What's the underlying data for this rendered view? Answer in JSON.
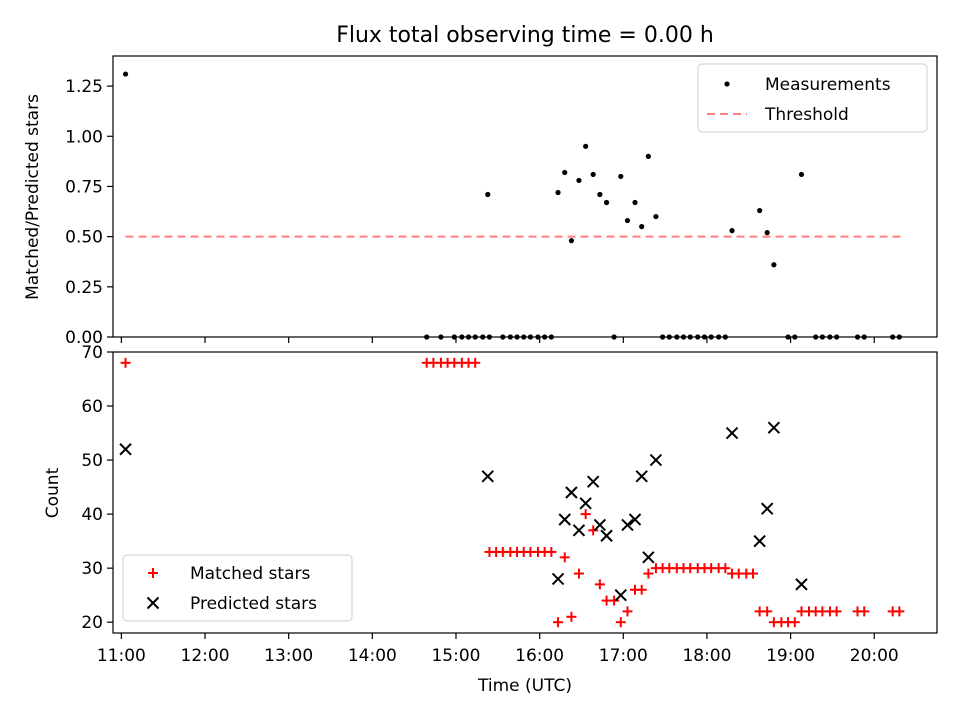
{
  "chart_data": {
    "title": "Flux total observing time = 0.00 h",
    "xlabel": "Time (UTC)",
    "xlim_hours": [
      10.9,
      20.75
    ],
    "x_ticks": [
      {
        "value": 11,
        "label": "11:00"
      },
      {
        "value": 12,
        "label": "12:00"
      },
      {
        "value": 13,
        "label": "13:00"
      },
      {
        "value": 14,
        "label": "14:00"
      },
      {
        "value": 15,
        "label": "15:00"
      },
      {
        "value": 16,
        "label": "16:00"
      },
      {
        "value": 17,
        "label": "17:00"
      },
      {
        "value": 18,
        "label": "18:00"
      },
      {
        "value": 19,
        "label": "19:00"
      },
      {
        "value": 20,
        "label": "20:00"
      }
    ],
    "top": {
      "type": "scatter",
      "ylabel": "Matched/Predicted stars",
      "ylim": [
        0,
        1.4
      ],
      "y_ticks": [
        {
          "value": 0,
          "label": "0.00"
        },
        {
          "value": 0.25,
          "label": "0.25"
        },
        {
          "value": 0.5,
          "label": "0.50"
        },
        {
          "value": 0.75,
          "label": "0.75"
        },
        {
          "value": 1.0,
          "label": "1.00"
        },
        {
          "value": 1.25,
          "label": "1.25"
        }
      ],
      "legend": {
        "measurements": "Measurements",
        "threshold": "Threshold"
      },
      "threshold": {
        "value": 0.5,
        "x_range": [
          11.05,
          20.33
        ],
        "color": "#ff7f7f"
      },
      "measurements": [
        [
          11.05,
          1.31
        ],
        [
          15.38,
          0.71
        ],
        [
          16.22,
          0.72
        ],
        [
          16.3,
          0.82
        ],
        [
          16.38,
          0.48
        ],
        [
          16.47,
          0.78
        ],
        [
          16.55,
          0.95
        ],
        [
          16.64,
          0.81
        ],
        [
          16.72,
          0.71
        ],
        [
          16.8,
          0.67
        ],
        [
          16.97,
          0.8
        ],
        [
          17.05,
          0.58
        ],
        [
          17.14,
          0.67
        ],
        [
          17.22,
          0.55
        ],
        [
          17.3,
          0.9
        ],
        [
          17.39,
          0.6
        ],
        [
          18.3,
          0.53
        ],
        [
          18.63,
          0.63
        ],
        [
          18.72,
          0.52
        ],
        [
          18.8,
          0.36
        ],
        [
          19.13,
          0.81
        ],
        [
          14.65,
          0
        ],
        [
          14.82,
          0
        ],
        [
          14.98,
          0
        ],
        [
          15.07,
          0
        ],
        [
          15.15,
          0
        ],
        [
          15.23,
          0
        ],
        [
          15.32,
          0
        ],
        [
          15.4,
          0
        ],
        [
          15.56,
          0
        ],
        [
          15.65,
          0
        ],
        [
          15.73,
          0
        ],
        [
          15.81,
          0
        ],
        [
          15.89,
          0
        ],
        [
          15.98,
          0
        ],
        [
          16.06,
          0
        ],
        [
          16.14,
          0
        ],
        [
          16.89,
          0
        ],
        [
          17.47,
          0
        ],
        [
          17.55,
          0
        ],
        [
          17.64,
          0
        ],
        [
          17.72,
          0
        ],
        [
          17.8,
          0
        ],
        [
          17.89,
          0
        ],
        [
          17.97,
          0
        ],
        [
          18.05,
          0
        ],
        [
          18.14,
          0
        ],
        [
          18.22,
          0
        ],
        [
          18.97,
          0
        ],
        [
          19.05,
          0
        ],
        [
          19.3,
          0
        ],
        [
          19.38,
          0
        ],
        [
          19.47,
          0
        ],
        [
          19.55,
          0
        ],
        [
          19.8,
          0
        ],
        [
          19.88,
          0
        ],
        [
          20.22,
          0
        ],
        [
          20.3,
          0
        ]
      ]
    },
    "bottom": {
      "type": "scatter",
      "ylabel": "Count",
      "ylim": [
        18,
        70
      ],
      "y_ticks": [
        {
          "value": 20,
          "label": "20"
        },
        {
          "value": 30,
          "label": "30"
        },
        {
          "value": 40,
          "label": "40"
        },
        {
          "value": 50,
          "label": "50"
        },
        {
          "value": 60,
          "label": "60"
        },
        {
          "value": 70,
          "label": "70"
        }
      ],
      "legend": {
        "matched": "Matched stars",
        "predicted": "Predicted stars"
      },
      "matched_color": "#ff0000",
      "predicted_color": "#000000",
      "matched": [
        [
          11.05,
          68
        ],
        [
          14.65,
          68
        ],
        [
          14.73,
          68
        ],
        [
          14.82,
          68
        ],
        [
          14.9,
          68
        ],
        [
          14.98,
          68
        ],
        [
          15.07,
          68
        ],
        [
          15.15,
          68
        ],
        [
          15.23,
          68
        ],
        [
          15.4,
          33
        ],
        [
          15.48,
          33
        ],
        [
          15.56,
          33
        ],
        [
          15.65,
          33
        ],
        [
          15.73,
          33
        ],
        [
          15.81,
          33
        ],
        [
          15.89,
          33
        ],
        [
          15.98,
          33
        ],
        [
          16.06,
          33
        ],
        [
          16.14,
          33
        ],
        [
          16.22,
          20
        ],
        [
          16.3,
          32
        ],
        [
          16.38,
          21
        ],
        [
          16.47,
          29
        ],
        [
          16.55,
          40
        ],
        [
          16.64,
          37
        ],
        [
          16.72,
          27
        ],
        [
          16.8,
          24
        ],
        [
          16.89,
          24
        ],
        [
          16.97,
          20
        ],
        [
          17.05,
          22
        ],
        [
          17.14,
          26
        ],
        [
          17.22,
          26
        ],
        [
          17.3,
          29
        ],
        [
          17.39,
          30
        ],
        [
          17.47,
          30
        ],
        [
          17.55,
          30
        ],
        [
          17.64,
          30
        ],
        [
          17.72,
          30
        ],
        [
          17.8,
          30
        ],
        [
          17.89,
          30
        ],
        [
          17.97,
          30
        ],
        [
          18.05,
          30
        ],
        [
          18.14,
          30
        ],
        [
          18.22,
          30
        ],
        [
          18.3,
          29
        ],
        [
          18.38,
          29
        ],
        [
          18.47,
          29
        ],
        [
          18.55,
          29
        ],
        [
          18.63,
          22
        ],
        [
          18.72,
          22
        ],
        [
          18.8,
          20
        ],
        [
          18.89,
          20
        ],
        [
          18.97,
          20
        ],
        [
          19.05,
          20
        ],
        [
          19.13,
          22
        ],
        [
          19.22,
          22
        ],
        [
          19.3,
          22
        ],
        [
          19.38,
          22
        ],
        [
          19.47,
          22
        ],
        [
          19.55,
          22
        ],
        [
          19.8,
          22
        ],
        [
          19.88,
          22
        ],
        [
          20.22,
          22
        ],
        [
          20.3,
          22
        ]
      ],
      "predicted": [
        [
          11.05,
          52
        ],
        [
          15.38,
          47
        ],
        [
          16.22,
          28
        ],
        [
          16.3,
          39
        ],
        [
          16.38,
          44
        ],
        [
          16.47,
          37
        ],
        [
          16.55,
          42
        ],
        [
          16.64,
          46
        ],
        [
          16.72,
          38
        ],
        [
          16.8,
          36
        ],
        [
          16.97,
          25
        ],
        [
          17.05,
          38
        ],
        [
          17.14,
          39
        ],
        [
          17.22,
          47
        ],
        [
          17.3,
          32
        ],
        [
          17.39,
          50
        ],
        [
          18.3,
          55
        ],
        [
          18.63,
          35
        ],
        [
          18.72,
          41
        ],
        [
          18.8,
          56
        ],
        [
          19.13,
          27
        ]
      ]
    }
  }
}
